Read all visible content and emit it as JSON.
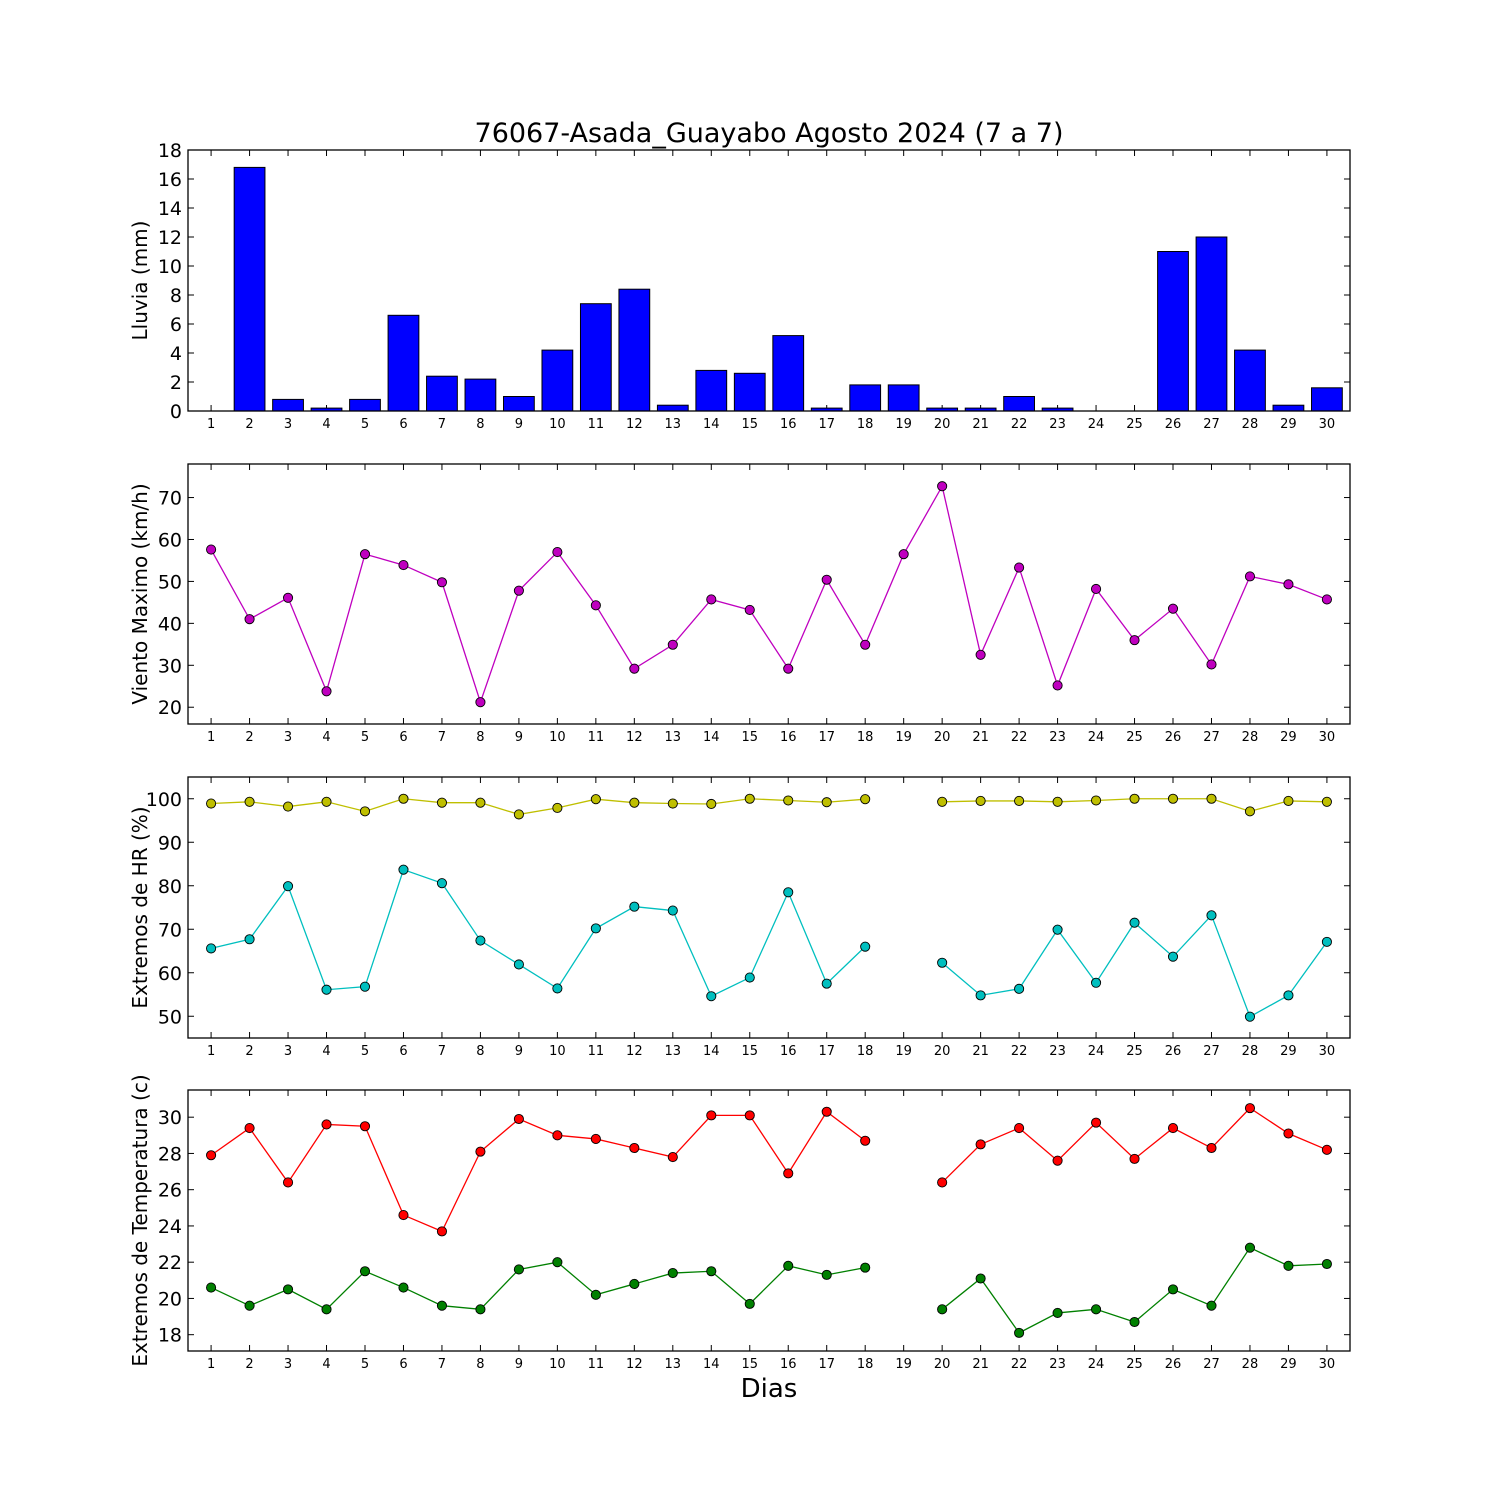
{
  "figure": {
    "title": "76067-Asada_Guayabo Agosto 2024  (7 a 7)",
    "xlabel": "Dias"
  },
  "chart_data": [
    {
      "type": "bar",
      "ylabel": "Lluvia (mm)",
      "ylim": [
        0,
        18
      ],
      "yticks": [
        0,
        2,
        4,
        6,
        8,
        10,
        12,
        14,
        16,
        18
      ],
      "x": [
        1,
        2,
        3,
        4,
        5,
        6,
        7,
        8,
        9,
        10,
        11,
        12,
        13,
        14,
        15,
        16,
        17,
        18,
        19,
        20,
        21,
        22,
        23,
        24,
        25,
        26,
        27,
        28,
        29,
        30
      ],
      "series": [
        {
          "color": "#0000ff",
          "values": [
            0,
            16.8,
            0.8,
            0.2,
            0.8,
            6.6,
            2.4,
            2.2,
            1.0,
            4.2,
            7.4,
            8.4,
            0.4,
            2.8,
            2.6,
            5.2,
            0.2,
            1.8,
            1.8,
            0.2,
            0.2,
            1.0,
            0.2,
            0,
            0,
            11.0,
            12.0,
            4.2,
            0.4,
            1.6
          ]
        }
      ],
      "grid": false
    },
    {
      "type": "line",
      "ylabel": "Viento Maximo (km/h)",
      "ylim": [
        16,
        78
      ],
      "yticks": [
        20,
        30,
        40,
        50,
        60,
        70
      ],
      "x": [
        1,
        2,
        3,
        4,
        5,
        6,
        7,
        8,
        9,
        10,
        11,
        12,
        13,
        14,
        15,
        16,
        17,
        18,
        19,
        20,
        21,
        22,
        23,
        24,
        25,
        26,
        27,
        28,
        29,
        30
      ],
      "series": [
        {
          "color": "#bf00bf",
          "values": [
            57.6,
            41.0,
            46.1,
            23.8,
            56.5,
            53.9,
            49.8,
            21.2,
            47.8,
            57.0,
            44.3,
            29.2,
            34.9,
            45.7,
            43.2,
            29.2,
            50.4,
            34.9,
            56.5,
            72.7,
            32.5,
            53.3,
            25.2,
            48.2,
            36.0,
            43.5,
            30.2,
            51.2,
            49.3,
            45.7
          ]
        }
      ],
      "grid": false
    },
    {
      "type": "line",
      "ylabel": "Extremos de HR (%)",
      "ylim": [
        45,
        105
      ],
      "yticks": [
        50,
        60,
        70,
        80,
        90,
        100
      ],
      "x": [
        1,
        2,
        3,
        4,
        5,
        6,
        7,
        8,
        9,
        10,
        11,
        12,
        13,
        14,
        15,
        16,
        17,
        18,
        19,
        20,
        21,
        22,
        23,
        24,
        25,
        26,
        27,
        28,
        29,
        30
      ],
      "series": [
        {
          "color": "#bfbf00",
          "values": [
            98.9,
            99.3,
            98.2,
            99.3,
            97.1,
            100.0,
            99.1,
            99.1,
            96.4,
            97.9,
            99.9,
            99.1,
            98.9,
            98.8,
            100.0,
            99.6,
            99.2,
            99.9,
            null,
            99.3,
            99.5,
            99.5,
            99.3,
            99.6,
            100.0,
            100.0,
            100.0,
            97.1,
            99.5,
            99.3
          ]
        },
        {
          "color": "#00bfbf",
          "values": [
            65.6,
            67.7,
            79.9,
            56.1,
            56.8,
            83.7,
            80.6,
            67.4,
            61.9,
            56.4,
            70.2,
            75.2,
            74.3,
            54.6,
            58.9,
            78.5,
            57.5,
            66.0,
            null,
            62.3,
            54.8,
            56.3,
            69.9,
            57.7,
            71.5,
            63.7,
            73.2,
            49.9,
            54.8,
            67.1
          ]
        }
      ],
      "grid": false
    },
    {
      "type": "line",
      "ylabel": "Extremos de Temperatura (c)",
      "ylim": [
        17.1,
        31.5
      ],
      "yticks": [
        18,
        20,
        22,
        24,
        26,
        28,
        30
      ],
      "x": [
        1,
        2,
        3,
        4,
        5,
        6,
        7,
        8,
        9,
        10,
        11,
        12,
        13,
        14,
        15,
        16,
        17,
        18,
        19,
        20,
        21,
        22,
        23,
        24,
        25,
        26,
        27,
        28,
        29,
        30
      ],
      "series": [
        {
          "color": "#ff0000",
          "values": [
            27.9,
            29.4,
            26.4,
            29.6,
            29.5,
            24.6,
            23.7,
            28.1,
            29.9,
            29.0,
            28.8,
            28.3,
            27.8,
            30.1,
            30.1,
            26.9,
            30.3,
            28.7,
            null,
            26.4,
            28.5,
            29.4,
            27.6,
            29.7,
            27.7,
            29.4,
            28.3,
            30.5,
            29.1,
            28.2
          ]
        },
        {
          "color": "#008000",
          "values": [
            20.6,
            19.6,
            20.5,
            19.4,
            21.5,
            20.6,
            19.6,
            19.4,
            21.6,
            22.0,
            20.2,
            20.8,
            21.4,
            21.5,
            19.7,
            21.8,
            21.3,
            21.7,
            null,
            19.4,
            21.1,
            18.1,
            19.2,
            19.4,
            18.7,
            20.5,
            19.6,
            22.8,
            21.8,
            21.9
          ]
        }
      ],
      "grid": false
    }
  ]
}
